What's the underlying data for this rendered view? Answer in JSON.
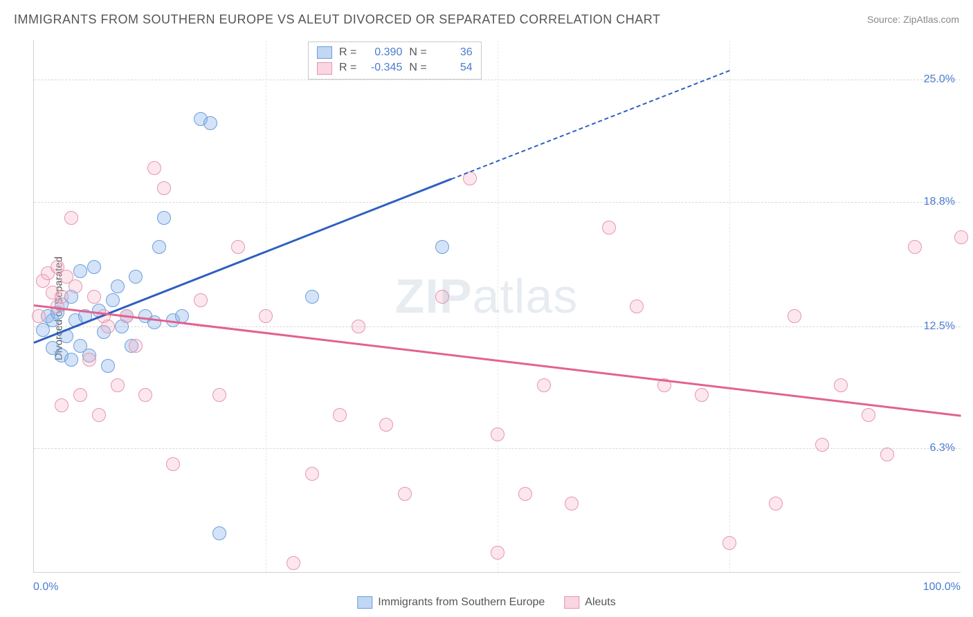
{
  "title": "IMMIGRANTS FROM SOUTHERN EUROPE VS ALEUT DIVORCED OR SEPARATED CORRELATION CHART",
  "source": "Source: ZipAtlas.com",
  "ylabel": "Divorced or Separated",
  "watermark_prefix": "ZIP",
  "watermark_suffix": "atlas",
  "chart": {
    "type": "scatter",
    "xlim": [
      0,
      100
    ],
    "ylim": [
      0,
      27
    ],
    "xticks": [
      {
        "pos": 0,
        "label": "0.0%"
      },
      {
        "pos": 100,
        "label": "100.0%"
      }
    ],
    "yticks": [
      {
        "pos": 6.3,
        "label": "6.3%"
      },
      {
        "pos": 12.5,
        "label": "12.5%"
      },
      {
        "pos": 18.8,
        "label": "18.8%"
      },
      {
        "pos": 25.0,
        "label": "25.0%"
      }
    ],
    "xgrid": [
      25,
      50,
      75
    ],
    "colors": {
      "blue": "#6a9edb",
      "pink": "#e695b0",
      "axis_text": "#4a7bd0",
      "grid": "#d8d8d8",
      "border": "#d0d0d0",
      "bg": "#ffffff"
    },
    "marker_radius": 10,
    "series": [
      {
        "name": "Immigrants from Southern Europe",
        "key": "blue",
        "r_label": "R =",
        "r_value": "0.390",
        "n_label": "N =",
        "n_value": "36",
        "trend": {
          "x1": 0,
          "y1": 11.7,
          "x2": 45,
          "y2": 20.0,
          "dash_to_x": 75,
          "dash_to_y": 25.5
        },
        "points": [
          [
            1,
            12.3
          ],
          [
            1.5,
            13.0
          ],
          [
            2,
            11.4
          ],
          [
            2,
            12.8
          ],
          [
            2.5,
            13.2
          ],
          [
            3,
            11.0
          ],
          [
            3,
            13.6
          ],
          [
            3.5,
            12.0
          ],
          [
            4,
            14.0
          ],
          [
            4,
            10.8
          ],
          [
            4.5,
            12.8
          ],
          [
            5,
            11.5
          ],
          [
            5,
            15.3
          ],
          [
            5.5,
            13.0
          ],
          [
            6,
            11.0
          ],
          [
            6.5,
            15.5
          ],
          [
            7,
            13.3
          ],
          [
            7.5,
            12.2
          ],
          [
            8,
            10.5
          ],
          [
            8.5,
            13.8
          ],
          [
            9,
            14.5
          ],
          [
            9.5,
            12.5
          ],
          [
            10,
            13.0
          ],
          [
            10.5,
            11.5
          ],
          [
            11,
            15.0
          ],
          [
            12,
            13.0
          ],
          [
            13,
            12.7
          ],
          [
            13.5,
            16.5
          ],
          [
            14,
            18.0
          ],
          [
            15,
            12.8
          ],
          [
            16,
            13.0
          ],
          [
            18,
            23.0
          ],
          [
            19,
            22.8
          ],
          [
            20,
            2.0
          ],
          [
            30,
            14.0
          ],
          [
            44,
            16.5
          ]
        ]
      },
      {
        "name": "Aleuts",
        "key": "pink",
        "r_label": "R =",
        "r_value": "-0.345",
        "n_label": "N =",
        "n_value": "54",
        "trend": {
          "x1": 0,
          "y1": 13.6,
          "x2": 100,
          "y2": 8.0
        },
        "points": [
          [
            0.5,
            13.0
          ],
          [
            1,
            14.8
          ],
          [
            1.5,
            15.2
          ],
          [
            2,
            14.2
          ],
          [
            2.5,
            13.5
          ],
          [
            2.5,
            15.5
          ],
          [
            3,
            14.0
          ],
          [
            3,
            8.5
          ],
          [
            3.5,
            15.0
          ],
          [
            4,
            18.0
          ],
          [
            4.5,
            14.5
          ],
          [
            5,
            9.0
          ],
          [
            6,
            10.8
          ],
          [
            6.5,
            14.0
          ],
          [
            7,
            8.0
          ],
          [
            7.5,
            13.0
          ],
          [
            8,
            12.5
          ],
          [
            9,
            9.5
          ],
          [
            10,
            13.0
          ],
          [
            11,
            11.5
          ],
          [
            12,
            9.0
          ],
          [
            13,
            20.5
          ],
          [
            14,
            19.5
          ],
          [
            15,
            5.5
          ],
          [
            18,
            13.8
          ],
          [
            20,
            9.0
          ],
          [
            22,
            16.5
          ],
          [
            25,
            13.0
          ],
          [
            28,
            0.5
          ],
          [
            30,
            5.0
          ],
          [
            33,
            8.0
          ],
          [
            35,
            12.5
          ],
          [
            38,
            7.5
          ],
          [
            40,
            4.0
          ],
          [
            44,
            14.0
          ],
          [
            47,
            20.0
          ],
          [
            50,
            7.0
          ],
          [
            50,
            1.0
          ],
          [
            53,
            4.0
          ],
          [
            55,
            9.5
          ],
          [
            58,
            3.5
          ],
          [
            62,
            17.5
          ],
          [
            65,
            13.5
          ],
          [
            68,
            9.5
          ],
          [
            72,
            9.0
          ],
          [
            75,
            1.5
          ],
          [
            80,
            3.5
          ],
          [
            82,
            13.0
          ],
          [
            85,
            6.5
          ],
          [
            87,
            9.5
          ],
          [
            90,
            8.0
          ],
          [
            92,
            6.0
          ],
          [
            95,
            16.5
          ],
          [
            100,
            17.0
          ]
        ]
      }
    ]
  }
}
